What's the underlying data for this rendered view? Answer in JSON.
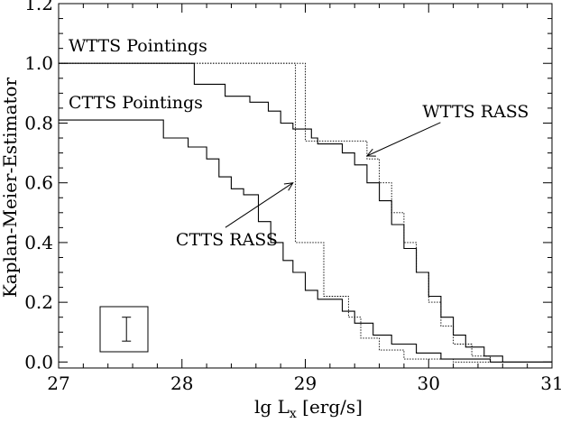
{
  "chart_data": {
    "type": "line",
    "title": "",
    "xlabel": "lg L",
    "xlabel_sub": "x",
    "xlabel_unit": " [erg/s]",
    "ylabel": "Kaplan-Meier-Estimator",
    "xlim": [
      27,
      31
    ],
    "ylim": [
      -0.02,
      1.2
    ],
    "xticks": [
      "27",
      "28",
      "29",
      "30",
      "31"
    ],
    "yticks": [
      "0.0",
      "0.2",
      "0.4",
      "0.6",
      "0.8",
      "1.0",
      "1.2"
    ],
    "xtick_values": [
      27,
      28,
      29,
      30,
      31
    ],
    "ytick_values": [
      0.0,
      0.2,
      0.4,
      0.6,
      0.8,
      1.0,
      1.2
    ],
    "grid": false,
    "series": [
      {
        "name": "WTTS Pointings",
        "style": "solid",
        "points": [
          [
            27.0,
            1.0
          ],
          [
            28.1,
            1.0
          ],
          [
            28.1,
            0.93
          ],
          [
            28.35,
            0.93
          ],
          [
            28.35,
            0.89
          ],
          [
            28.55,
            0.89
          ],
          [
            28.55,
            0.87
          ],
          [
            28.7,
            0.87
          ],
          [
            28.7,
            0.84
          ],
          [
            28.8,
            0.84
          ],
          [
            28.8,
            0.8
          ],
          [
            28.9,
            0.8
          ],
          [
            28.9,
            0.78
          ],
          [
            29.05,
            0.78
          ],
          [
            29.05,
            0.75
          ],
          [
            29.1,
            0.75
          ],
          [
            29.1,
            0.73
          ],
          [
            29.3,
            0.73
          ],
          [
            29.3,
            0.7
          ],
          [
            29.4,
            0.7
          ],
          [
            29.4,
            0.66
          ],
          [
            29.5,
            0.66
          ],
          [
            29.5,
            0.6
          ],
          [
            29.6,
            0.6
          ],
          [
            29.6,
            0.54
          ],
          [
            29.7,
            0.54
          ],
          [
            29.7,
            0.46
          ],
          [
            29.8,
            0.46
          ],
          [
            29.8,
            0.38
          ],
          [
            29.9,
            0.38
          ],
          [
            29.9,
            0.3
          ],
          [
            30.0,
            0.3
          ],
          [
            30.0,
            0.22
          ],
          [
            30.1,
            0.22
          ],
          [
            30.1,
            0.15
          ],
          [
            30.2,
            0.15
          ],
          [
            30.2,
            0.09
          ],
          [
            30.3,
            0.09
          ],
          [
            30.3,
            0.05
          ],
          [
            30.45,
            0.05
          ],
          [
            30.45,
            0.02
          ],
          [
            30.6,
            0.02
          ],
          [
            30.6,
            0.0
          ],
          [
            31.0,
            0.0
          ]
        ]
      },
      {
        "name": "CTTS Pointings",
        "style": "solid",
        "points": [
          [
            27.0,
            0.81
          ],
          [
            27.85,
            0.81
          ],
          [
            27.85,
            0.75
          ],
          [
            28.05,
            0.75
          ],
          [
            28.05,
            0.72
          ],
          [
            28.2,
            0.72
          ],
          [
            28.2,
            0.68
          ],
          [
            28.3,
            0.68
          ],
          [
            28.3,
            0.62
          ],
          [
            28.4,
            0.62
          ],
          [
            28.4,
            0.58
          ],
          [
            28.5,
            0.58
          ],
          [
            28.5,
            0.56
          ],
          [
            28.62,
            0.56
          ],
          [
            28.62,
            0.47
          ],
          [
            28.72,
            0.47
          ],
          [
            28.72,
            0.4
          ],
          [
            28.82,
            0.4
          ],
          [
            28.82,
            0.34
          ],
          [
            28.9,
            0.34
          ],
          [
            28.9,
            0.3
          ],
          [
            29.0,
            0.3
          ],
          [
            29.0,
            0.24
          ],
          [
            29.1,
            0.24
          ],
          [
            29.1,
            0.21
          ],
          [
            29.3,
            0.21
          ],
          [
            29.3,
            0.17
          ],
          [
            29.4,
            0.17
          ],
          [
            29.4,
            0.13
          ],
          [
            29.55,
            0.13
          ],
          [
            29.55,
            0.09
          ],
          [
            29.7,
            0.09
          ],
          [
            29.7,
            0.06
          ],
          [
            29.9,
            0.06
          ],
          [
            29.9,
            0.03
          ],
          [
            30.1,
            0.03
          ],
          [
            30.1,
            0.01
          ],
          [
            30.5,
            0.01
          ],
          [
            30.5,
            0.0
          ],
          [
            31.0,
            0.0
          ]
        ]
      },
      {
        "name": "WTTS RASS",
        "style": "dotted",
        "points": [
          [
            27.0,
            1.0
          ],
          [
            29.0,
            1.0
          ],
          [
            29.0,
            0.74
          ],
          [
            29.5,
            0.74
          ],
          [
            29.5,
            0.68
          ],
          [
            29.6,
            0.68
          ],
          [
            29.6,
            0.6
          ],
          [
            29.7,
            0.6
          ],
          [
            29.7,
            0.5
          ],
          [
            29.8,
            0.5
          ],
          [
            29.8,
            0.4
          ],
          [
            29.9,
            0.4
          ],
          [
            29.9,
            0.3
          ],
          [
            30.0,
            0.3
          ],
          [
            30.0,
            0.2
          ],
          [
            30.1,
            0.2
          ],
          [
            30.1,
            0.12
          ],
          [
            30.2,
            0.12
          ],
          [
            30.2,
            0.06
          ],
          [
            30.35,
            0.06
          ],
          [
            30.35,
            0.02
          ],
          [
            30.5,
            0.02
          ],
          [
            30.5,
            0.0
          ],
          [
            31.0,
            0.0
          ]
        ]
      },
      {
        "name": "CTTS RASS",
        "style": "dotted",
        "points": [
          [
            27.0,
            1.0
          ],
          [
            28.92,
            1.0
          ],
          [
            28.92,
            0.4
          ],
          [
            29.15,
            0.4
          ],
          [
            29.15,
            0.22
          ],
          [
            29.35,
            0.22
          ],
          [
            29.35,
            0.15
          ],
          [
            29.45,
            0.15
          ],
          [
            29.45,
            0.08
          ],
          [
            29.6,
            0.08
          ],
          [
            29.6,
            0.04
          ],
          [
            29.8,
            0.04
          ],
          [
            29.8,
            0.01
          ],
          [
            30.2,
            0.01
          ],
          [
            30.2,
            0.0
          ],
          [
            31.0,
            0.0
          ]
        ]
      }
    ],
    "annotations": [
      {
        "text": "WTTS Pointings",
        "x": 27.08,
        "y": 1.04
      },
      {
        "text": "CTTS Pointings",
        "x": 27.08,
        "y": 0.85
      },
      {
        "text": "WTTS RASS",
        "x": 29.95,
        "y": 0.82,
        "arrow_to": [
          29.5,
          0.69
        ]
      },
      {
        "text": "CTTS RASS",
        "x": 27.95,
        "y": 0.39,
        "arrow_to": [
          28.9,
          0.6
        ]
      }
    ],
    "error_bar_inset": {
      "x": 27.55,
      "y_low": 0.07,
      "y_high": 0.15
    }
  }
}
